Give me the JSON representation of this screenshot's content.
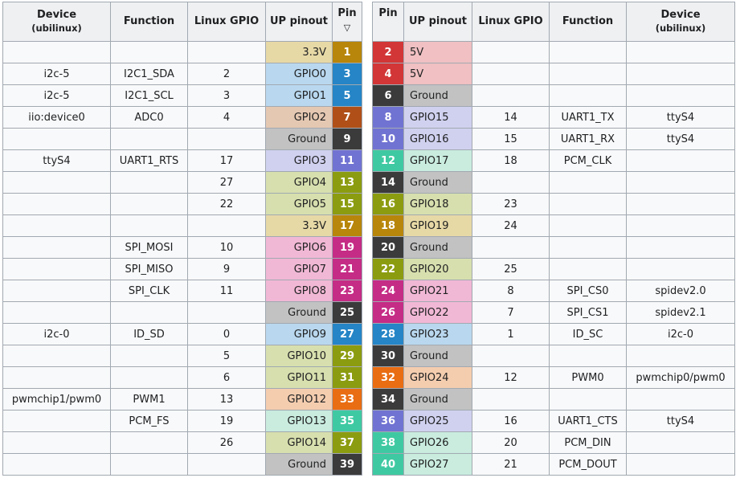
{
  "headers": {
    "device": "Device",
    "device_sub": "(ubilinux)",
    "function": "Function",
    "linux_gpio": "Linux GPIO",
    "up_pinout": "UP pinout",
    "pin": "Pin",
    "sort_indicator": "▽"
  },
  "colors": {
    "power_3v3": {
      "pin": "#b8860b",
      "cell": "#e7d9a6"
    },
    "power_5v": {
      "pin": "#d23636",
      "cell": "#f0c0c2"
    },
    "ground": {
      "pin": "#3b3b3b",
      "cell": "#c2c2c2"
    },
    "i2c": {
      "pin": "#2585c6",
      "cell": "#b9d8ef"
    },
    "adc": {
      "pin": "#b05018",
      "cell": "#e5c8b2"
    },
    "uart": {
      "pin": "#7173d2",
      "cell": "#d0d1ef"
    },
    "gpio": {
      "pin": "#8c9c10",
      "cell": "#d7dfae"
    },
    "spi": {
      "pin": "#c52c85",
      "cell": "#f1b8d5"
    },
    "pwm": {
      "pin": "#e96d13",
      "cell": "#f4cdaf"
    },
    "pcm": {
      "pin": "#3fc9a2",
      "cell": "#c9ecdf"
    }
  },
  "rows": [
    {
      "left": {
        "device": "",
        "function": "",
        "linux_gpio": "",
        "up_pinout": "3.3V",
        "pin": "1",
        "type": "power_3v3"
      },
      "right": {
        "pin": "2",
        "up_pinout": "5V",
        "linux_gpio": "",
        "function": "",
        "device": "",
        "type": "power_5v"
      }
    },
    {
      "left": {
        "device": "i2c-5",
        "function": "I2C1_SDA",
        "linux_gpio": "2",
        "up_pinout": "GPIO0",
        "pin": "3",
        "type": "i2c"
      },
      "right": {
        "pin": "4",
        "up_pinout": "5V",
        "linux_gpio": "",
        "function": "",
        "device": "",
        "type": "power_5v"
      }
    },
    {
      "left": {
        "device": "i2c-5",
        "function": "I2C1_SCL",
        "linux_gpio": "3",
        "up_pinout": "GPIO1",
        "pin": "5",
        "type": "i2c"
      },
      "right": {
        "pin": "6",
        "up_pinout": "Ground",
        "linux_gpio": "",
        "function": "",
        "device": "",
        "type": "ground"
      }
    },
    {
      "left": {
        "device": "iio:device0",
        "function": "ADC0",
        "linux_gpio": "4",
        "up_pinout": "GPIO2",
        "pin": "7",
        "type": "adc"
      },
      "right": {
        "pin": "8",
        "up_pinout": "GPIO15",
        "linux_gpio": "14",
        "function": "UART1_TX",
        "device": "ttyS4",
        "type": "uart"
      }
    },
    {
      "left": {
        "device": "",
        "function": "",
        "linux_gpio": "",
        "up_pinout": "Ground",
        "pin": "9",
        "type": "ground"
      },
      "right": {
        "pin": "10",
        "up_pinout": "GPIO16",
        "linux_gpio": "15",
        "function": "UART1_RX",
        "device": "ttyS4",
        "type": "uart"
      }
    },
    {
      "left": {
        "device": "ttyS4",
        "function": "UART1_RTS",
        "linux_gpio": "17",
        "up_pinout": "GPIO3",
        "pin": "11",
        "type": "uart"
      },
      "right": {
        "pin": "12",
        "up_pinout": "GPIO17",
        "linux_gpio": "18",
        "function": "PCM_CLK",
        "device": "",
        "type": "pcm"
      }
    },
    {
      "left": {
        "device": "",
        "function": "",
        "linux_gpio": "27",
        "up_pinout": "GPIO4",
        "pin": "13",
        "type": "gpio"
      },
      "right": {
        "pin": "14",
        "up_pinout": "Ground",
        "linux_gpio": "",
        "function": "",
        "device": "",
        "type": "ground"
      }
    },
    {
      "left": {
        "device": "",
        "function": "",
        "linux_gpio": "22",
        "up_pinout": "GPIO5",
        "pin": "15",
        "type": "gpio"
      },
      "right": {
        "pin": "16",
        "up_pinout": "GPIO18",
        "linux_gpio": "23",
        "function": "",
        "device": "",
        "type": "gpio"
      }
    },
    {
      "left": {
        "device": "",
        "function": "",
        "linux_gpio": "",
        "up_pinout": "3.3V",
        "pin": "17",
        "type": "power_3v3"
      },
      "right": {
        "pin": "18",
        "up_pinout": "GPIO19",
        "linux_gpio": "24",
        "function": "",
        "device": "",
        "type": "power_3v3"
      }
    },
    {
      "left": {
        "device": "",
        "function": "SPI_MOSI",
        "linux_gpio": "10",
        "up_pinout": "GPIO6",
        "pin": "19",
        "type": "spi"
      },
      "right": {
        "pin": "20",
        "up_pinout": "Ground",
        "linux_gpio": "",
        "function": "",
        "device": "",
        "type": "ground"
      }
    },
    {
      "left": {
        "device": "",
        "function": "SPI_MISO",
        "linux_gpio": "9",
        "up_pinout": "GPIO7",
        "pin": "21",
        "type": "spi"
      },
      "right": {
        "pin": "22",
        "up_pinout": "GPIO20",
        "linux_gpio": "25",
        "function": "",
        "device": "",
        "type": "gpio"
      }
    },
    {
      "left": {
        "device": "",
        "function": "SPI_CLK",
        "linux_gpio": "11",
        "up_pinout": "GPIO8",
        "pin": "23",
        "type": "spi"
      },
      "right": {
        "pin": "24",
        "up_pinout": "GPIO21",
        "linux_gpio": "8",
        "function": "SPI_CS0",
        "device": "spidev2.0",
        "type": "spi"
      }
    },
    {
      "left": {
        "device": "",
        "function": "",
        "linux_gpio": "",
        "up_pinout": "Ground",
        "pin": "25",
        "type": "ground"
      },
      "right": {
        "pin": "26",
        "up_pinout": "GPIO22",
        "linux_gpio": "7",
        "function": "SPI_CS1",
        "device": "spidev2.1",
        "type": "spi"
      }
    },
    {
      "left": {
        "device": "i2c-0",
        "function": "ID_SD",
        "linux_gpio": "0",
        "up_pinout": "GPIO9",
        "pin": "27",
        "type": "i2c"
      },
      "right": {
        "pin": "28",
        "up_pinout": "GPIO23",
        "linux_gpio": "1",
        "function": "ID_SC",
        "device": "i2c-0",
        "type": "i2c"
      }
    },
    {
      "left": {
        "device": "",
        "function": "",
        "linux_gpio": "5",
        "up_pinout": "GPIO10",
        "pin": "29",
        "type": "gpio"
      },
      "right": {
        "pin": "30",
        "up_pinout": "Ground",
        "linux_gpio": "",
        "function": "",
        "device": "",
        "type": "ground"
      }
    },
    {
      "left": {
        "device": "",
        "function": "",
        "linux_gpio": "6",
        "up_pinout": "GPIO11",
        "pin": "31",
        "type": "gpio"
      },
      "right": {
        "pin": "32",
        "up_pinout": "GPIO24",
        "linux_gpio": "12",
        "function": "PWM0",
        "device": "pwmchip0/pwm0",
        "type": "pwm"
      }
    },
    {
      "left": {
        "device": "pwmchip1/pwm0",
        "function": "PWM1",
        "linux_gpio": "13",
        "up_pinout": "GPIO12",
        "pin": "33",
        "type": "pwm"
      },
      "right": {
        "pin": "34",
        "up_pinout": "Ground",
        "linux_gpio": "",
        "function": "",
        "device": "",
        "type": "ground"
      }
    },
    {
      "left": {
        "device": "",
        "function": "PCM_FS",
        "linux_gpio": "19",
        "up_pinout": "GPIO13",
        "pin": "35",
        "type": "pcm"
      },
      "right": {
        "pin": "36",
        "up_pinout": "GPIO25",
        "linux_gpio": "16",
        "function": "UART1_CTS",
        "device": "ttyS4",
        "type": "uart"
      }
    },
    {
      "left": {
        "device": "",
        "function": "",
        "linux_gpio": "26",
        "up_pinout": "GPIO14",
        "pin": "37",
        "type": "gpio"
      },
      "right": {
        "pin": "38",
        "up_pinout": "GPIO26",
        "linux_gpio": "20",
        "function": "PCM_DIN",
        "device": "",
        "type": "pcm"
      }
    },
    {
      "left": {
        "device": "",
        "function": "",
        "linux_gpio": "",
        "up_pinout": "Ground",
        "pin": "39",
        "type": "ground"
      },
      "right": {
        "pin": "40",
        "up_pinout": "GPIO27",
        "linux_gpio": "21",
        "function": "PCM_DOUT",
        "device": "",
        "type": "pcm"
      }
    }
  ]
}
